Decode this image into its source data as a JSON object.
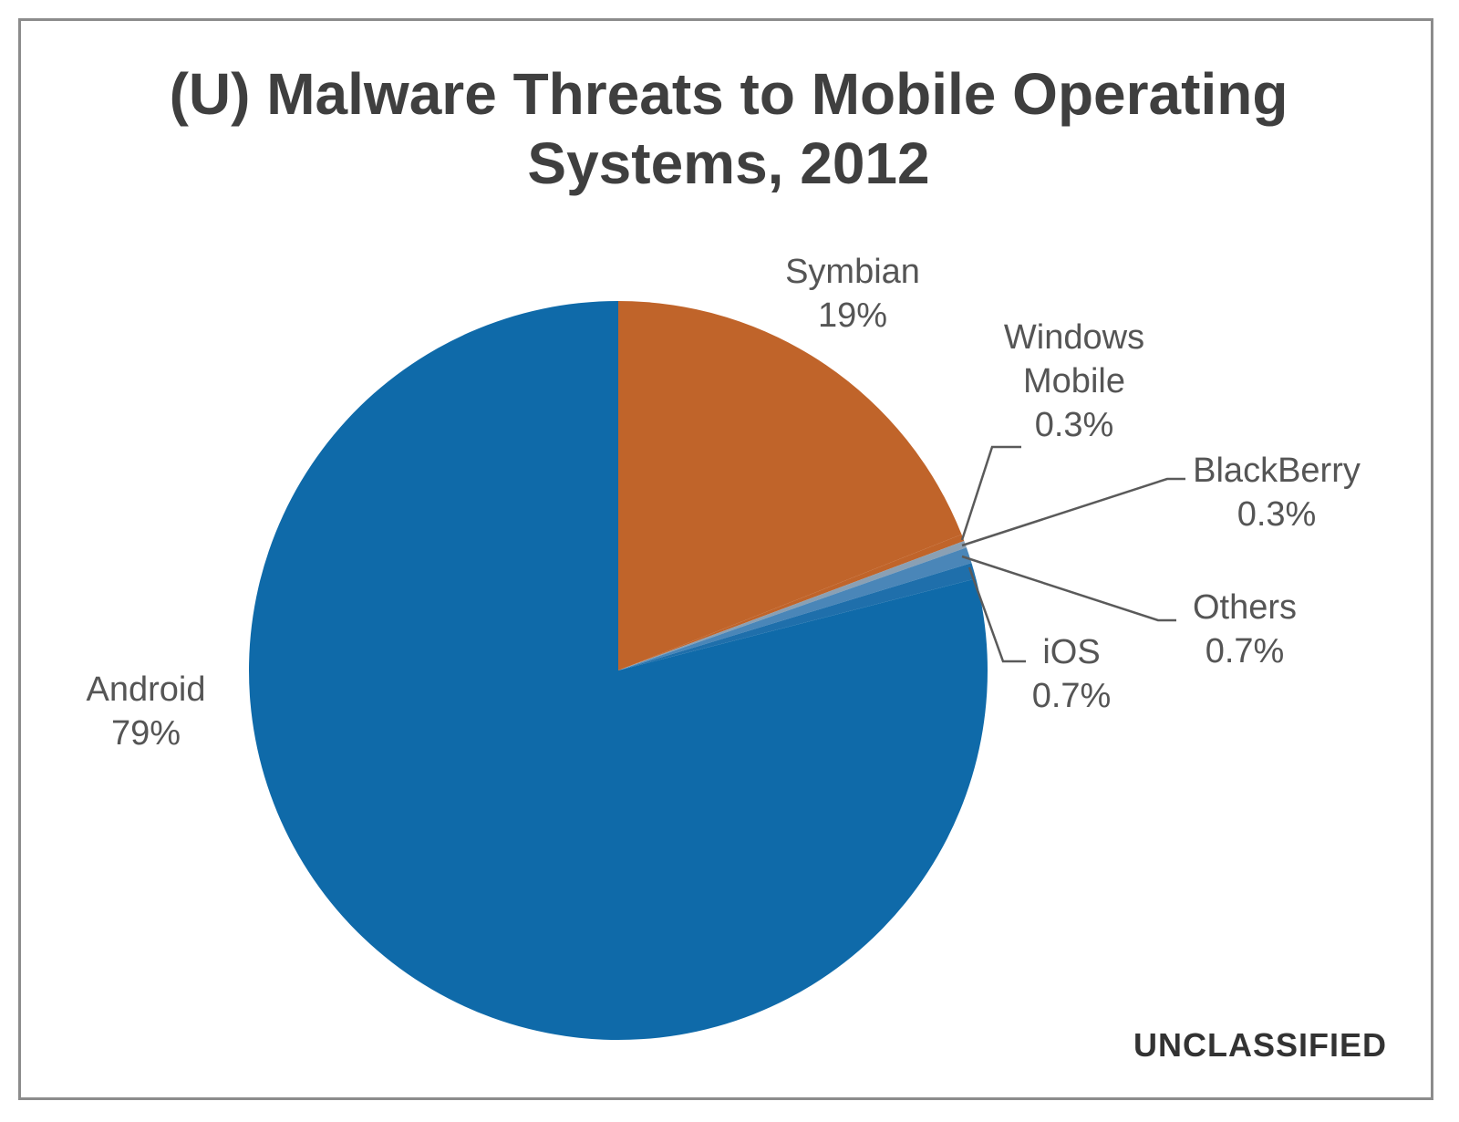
{
  "chart_data": {
    "type": "pie",
    "title_lines": [
      "(U)  Malware Threats to Mobile Operating",
      "Systems, 2012"
    ],
    "slices": [
      {
        "name": "Symbian",
        "value": 19,
        "value_label": "19%",
        "color": "#c0642a"
      },
      {
        "name": "Windows Mobile",
        "value": 0.3,
        "value_label": "0.3%",
        "color": "#c0642a"
      },
      {
        "name": "BlackBerry",
        "value": 0.3,
        "value_label": "0.3%",
        "color": "#8aa0b4"
      },
      {
        "name": "Others",
        "value": 0.7,
        "value_label": "0.7%",
        "color": "#4a86b8"
      },
      {
        "name": "iOS",
        "value": 0.7,
        "value_label": "0.7%",
        "color": "#1f6fab"
      },
      {
        "name": "Android",
        "value": 79,
        "value_label": "79%",
        "color": "#0f6aa9"
      }
    ]
  },
  "classification_marking": "UNCLASSIFIED"
}
